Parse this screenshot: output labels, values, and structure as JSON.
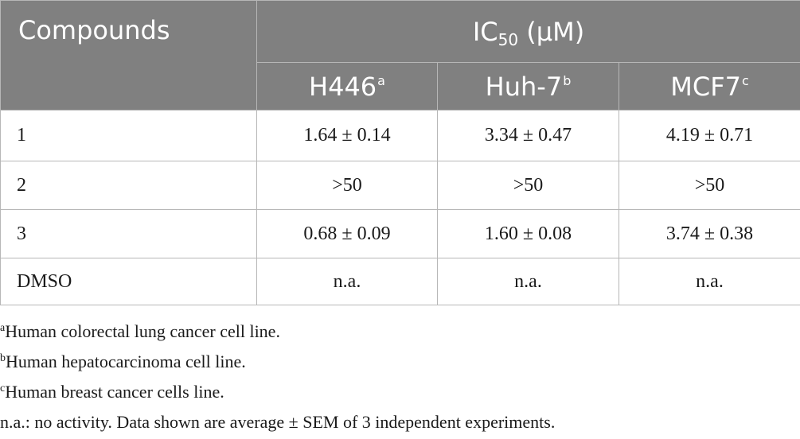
{
  "table": {
    "header": {
      "compounds": "Compounds",
      "ic50_prefix": "IC",
      "ic50_sub": "50",
      "ic50_unit": " (μM)",
      "cell_lines": [
        {
          "name": "H446",
          "sup": "a"
        },
        {
          "name": "Huh-7",
          "sup": "b"
        },
        {
          "name": "MCF7",
          "sup": "c"
        }
      ]
    },
    "rows": [
      {
        "compound": "1",
        "values": [
          "1.64 ± 0.14",
          "3.34 ± 0.47",
          "4.19 ± 0.71"
        ]
      },
      {
        "compound": "2",
        "values": [
          ">50",
          ">50",
          ">50"
        ]
      },
      {
        "compound": "3",
        "values": [
          "0.68 ± 0.09",
          "1.60 ± 0.08",
          "3.74 ± 0.38"
        ]
      },
      {
        "compound": "DMSO",
        "values": [
          "n.a.",
          "n.a.",
          "n.a."
        ]
      }
    ]
  },
  "footnotes": [
    {
      "sup": "a",
      "text": "Human colorectal lung cancer cell line."
    },
    {
      "sup": "b",
      "text": "Human hepatocarcinoma cell line."
    },
    {
      "sup": "c",
      "text": "Human breast cancer cells line."
    },
    {
      "sup": "",
      "text": "n.a.: no activity. Data shown are average ± SEM of 3 independent experiments."
    }
  ],
  "colors": {
    "header_bg": "#808080",
    "header_text": "#ffffff",
    "border": "#b7b7b7",
    "body_text": "#1a1a1a"
  }
}
